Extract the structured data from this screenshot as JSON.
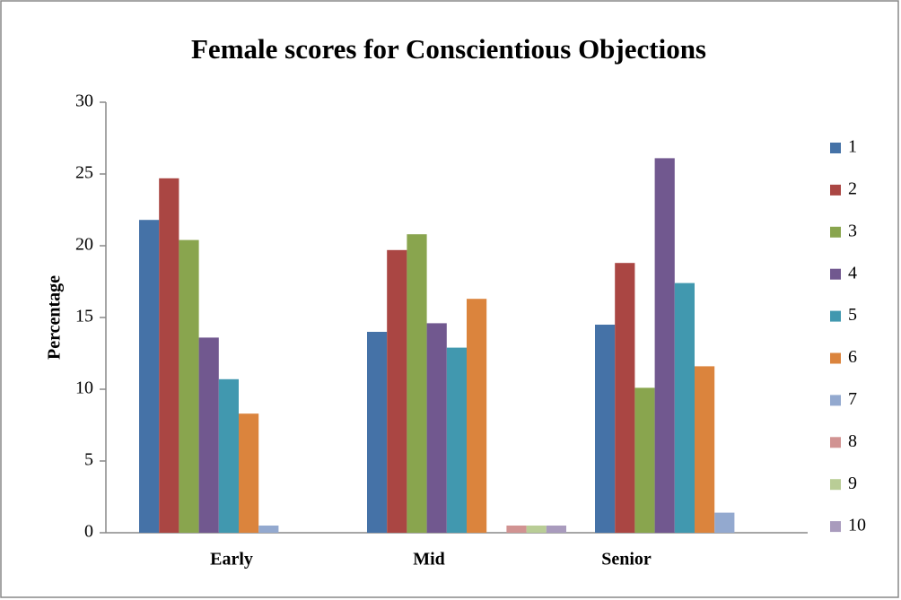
{
  "chart_data": {
    "type": "bar",
    "title": "Female scores for Conscientious Objections",
    "y_label": "Percentage",
    "categories": [
      "Early",
      "Mid",
      "Senior"
    ],
    "series": [
      {
        "name": "1",
        "color": "#4572A7",
        "values": [
          21.8,
          14.0,
          14.5
        ]
      },
      {
        "name": "2",
        "color": "#AA4643",
        "values": [
          24.7,
          19.7,
          18.8
        ]
      },
      {
        "name": "3",
        "color": "#89A54E",
        "values": [
          20.4,
          20.8,
          10.1
        ]
      },
      {
        "name": "4",
        "color": "#71588F",
        "values": [
          13.6,
          14.6,
          26.1
        ]
      },
      {
        "name": "5",
        "color": "#4198AF",
        "values": [
          10.7,
          12.9,
          17.4
        ]
      },
      {
        "name": "6",
        "color": "#DB843D",
        "values": [
          8.3,
          16.3,
          11.6
        ]
      },
      {
        "name": "7",
        "color": "#93A9CF",
        "values": [
          0.5,
          0,
          1.4
        ]
      },
      {
        "name": "8",
        "color": "#D19392",
        "values": [
          0,
          0.5,
          0
        ]
      },
      {
        "name": "9",
        "color": "#B9CD96",
        "values": [
          0,
          0.5,
          0
        ]
      },
      {
        "name": "10",
        "color": "#A99BBD",
        "values": [
          0,
          0.5,
          0
        ]
      }
    ],
    "ylim": [
      0,
      30
    ],
    "yticks": [
      0,
      5,
      10,
      15,
      20,
      25,
      30
    ],
    "grid": false,
    "legend": "right"
  }
}
